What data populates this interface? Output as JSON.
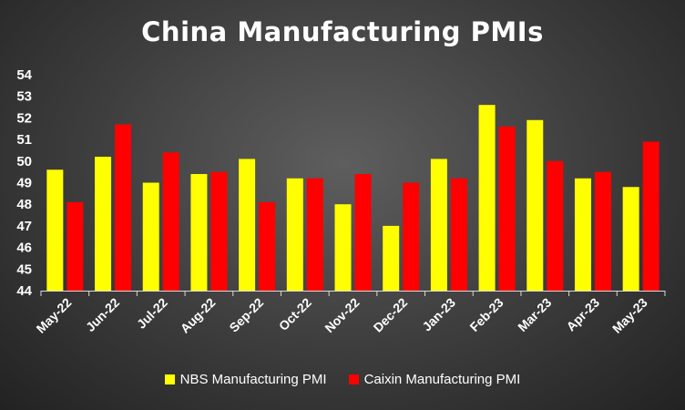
{
  "title": "China Manufacturing PMIs",
  "chart_data": {
    "type": "bar",
    "title": "China Manufacturing PMIs",
    "categories": [
      "May-22",
      "Jun-22",
      "Jul-22",
      "Aug-22",
      "Sep-22",
      "Oct-22",
      "Nov-22",
      "Dec-22",
      "Jan-23",
      "Feb-23",
      "Mar-23",
      "Apr-23",
      "May-23"
    ],
    "series": [
      {
        "name": "NBS Manufacturing PMI",
        "color": "#ffff00",
        "values": [
          49.6,
          50.2,
          49.0,
          49.4,
          50.1,
          49.2,
          48.0,
          47.0,
          50.1,
          52.6,
          51.9,
          49.2,
          48.8
        ]
      },
      {
        "name": "Caixin Manufacturing PMI",
        "color": "#ff0000",
        "values": [
          48.1,
          51.7,
          50.4,
          49.5,
          48.1,
          49.2,
          49.4,
          49.0,
          49.2,
          51.6,
          50.0,
          49.5,
          50.9
        ]
      }
    ],
    "ylim": [
      44,
      54
    ],
    "yticks": [
      44,
      45,
      46,
      47,
      48,
      49,
      50,
      51,
      52,
      53,
      54
    ],
    "grid": false,
    "legend": "bottom",
    "xlabel": "",
    "ylabel": ""
  }
}
